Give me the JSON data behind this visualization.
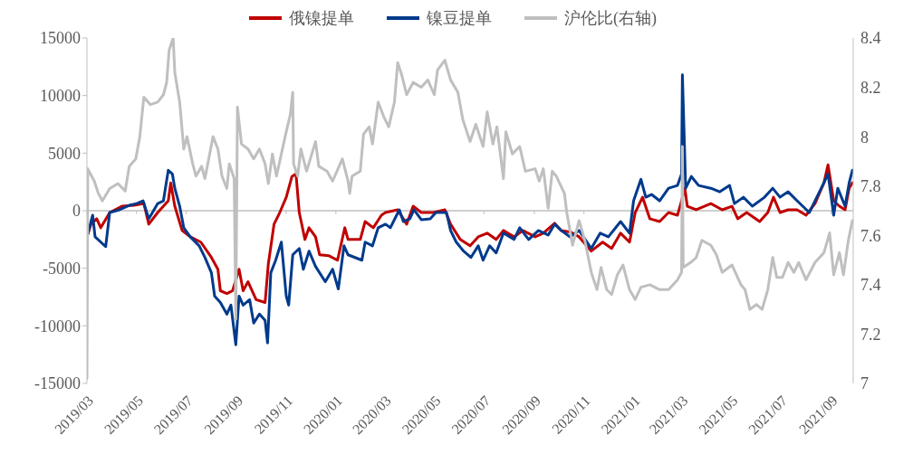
{
  "chart_data": {
    "type": "line",
    "legend": "top",
    "line_style": "solid",
    "marker": "none",
    "grid": false,
    "xlim": [
      "2019-03-01",
      "2021-09-28"
    ],
    "ref_lines": [
      {
        "axis": "y",
        "value": 0,
        "color": "#bfbfbf"
      }
    ],
    "xticks": [
      {
        "value": "2019-03-01",
        "label": "2019/03"
      },
      {
        "value": "2019-05-01",
        "label": "2019/05"
      },
      {
        "value": "2019-07-01",
        "label": "2019/07"
      },
      {
        "value": "2019-09-01",
        "label": "2019/09"
      },
      {
        "value": "2019-11-01",
        "label": "2019/11"
      },
      {
        "value": "2020-01-01",
        "label": "2020/01"
      },
      {
        "value": "2020-03-01",
        "label": "2020/03"
      },
      {
        "value": "2020-05-01",
        "label": "2020/05"
      },
      {
        "value": "2020-07-01",
        "label": "2020/07"
      },
      {
        "value": "2020-09-01",
        "label": "2020/09"
      },
      {
        "value": "2020-11-01",
        "label": "2020/11"
      },
      {
        "value": "2021-01-01",
        "label": "2021/01"
      },
      {
        "value": "2021-03-01",
        "label": "2021/03"
      },
      {
        "value": "2021-05-01",
        "label": "2021/05"
      },
      {
        "value": "2021-07-01",
        "label": "2021/07"
      },
      {
        "value": "2021-09-01",
        "label": "2021/09"
      }
    ],
    "ylim": [
      -15000,
      15000
    ],
    "yticks": [
      -15000,
      -10000,
      -5000,
      0,
      5000,
      10000,
      15000
    ],
    "y2lim": [
      7,
      8.4
    ],
    "y2ticks": [
      7,
      7.2,
      7.4,
      7.6,
      7.8,
      8,
      8.2,
      8.4
    ],
    "series": [
      {
        "name": "俄镍提单",
        "color": "#c00000",
        "x": [
          "2019-03-01",
          "2019-03-06",
          "2019-03-13",
          "2019-03-18",
          "2019-03-29",
          "2019-04-13",
          "2019-04-28",
          "2019-05-10",
          "2019-05-16",
          "2019-05-27",
          "2019-06-09",
          "2019-06-12",
          "2019-06-17",
          "2019-06-26",
          "2019-07-06",
          "2019-07-19",
          "2019-08-01",
          "2019-08-09",
          "2019-08-12",
          "2019-08-20",
          "2019-08-27",
          "2019-09-04",
          "2019-09-09",
          "2019-09-15",
          "2019-09-25",
          "2019-10-06",
          "2019-10-10",
          "2019-10-17",
          "2019-10-24",
          "2019-11-01",
          "2019-11-08",
          "2019-11-13",
          "2019-11-17",
          "2019-11-24",
          "2019-11-29",
          "2019-12-07",
          "2019-12-12",
          "2019-12-23",
          "2020-01-03",
          "2020-01-12",
          "2020-01-16",
          "2020-01-31",
          "2020-02-06",
          "2020-02-16",
          "2020-02-26",
          "2020-03-02",
          "2020-03-17",
          "2020-03-28",
          "2020-04-05",
          "2020-04-15",
          "2020-04-30",
          "2020-05-14",
          "2020-05-21",
          "2020-06-02",
          "2020-06-14",
          "2020-06-24",
          "2020-07-05",
          "2020-07-16",
          "2020-07-25",
          "2020-08-07",
          "2020-08-18",
          "2020-09-02",
          "2020-09-12",
          "2020-09-26",
          "2020-10-04",
          "2020-10-16",
          "2020-10-26",
          "2020-11-10",
          "2020-11-24",
          "2020-12-05",
          "2020-12-16",
          "2020-12-27",
          "2021-01-03",
          "2021-01-12",
          "2021-01-21",
          "2021-02-02",
          "2021-02-13",
          "2021-02-24",
          "2021-03-01",
          "2021-03-05",
          "2021-03-08",
          "2021-03-19",
          "2021-04-06",
          "2021-04-20",
          "2021-05-02",
          "2021-05-09",
          "2021-05-20",
          "2021-06-05",
          "2021-06-15",
          "2021-06-22",
          "2021-06-30",
          "2021-07-10",
          "2021-07-21",
          "2021-08-01",
          "2021-08-12",
          "2021-08-23",
          "2021-08-28",
          "2021-09-04",
          "2021-09-11",
          "2021-09-18",
          "2021-09-23",
          "2021-09-27"
        ],
        "values": [
          -2270,
          -1170,
          -700,
          -1480,
          -160,
          390,
          470,
          620,
          -1170,
          -160,
          860,
          2420,
          390,
          -1720,
          -2270,
          -2730,
          -4060,
          -5080,
          -6950,
          -7190,
          -6950,
          -5080,
          -6950,
          -6170,
          -7730,
          -7970,
          -4610,
          -1170,
          -160,
          1170,
          2970,
          3200,
          -160,
          -2500,
          -1480,
          -2270,
          -3830,
          -3900,
          -4300,
          -1480,
          -2500,
          -2500,
          -940,
          -1480,
          -390,
          -160,
          80,
          -1170,
          390,
          -160,
          -160,
          80,
          -1170,
          -2500,
          -3050,
          -2270,
          -1950,
          -2500,
          -1720,
          -2270,
          -1720,
          -2270,
          -1950,
          -1090,
          -1720,
          -1870,
          -2270,
          -3510,
          -2730,
          -3280,
          -1950,
          -2730,
          -160,
          1170,
          -700,
          -940,
          -160,
          -390,
          860,
          1950,
          390,
          80,
          620,
          80,
          390,
          -700,
          -160,
          -940,
          -160,
          1170,
          -160,
          80,
          80,
          -390,
          620,
          2420,
          3980,
          860,
          390,
          80,
          1950,
          2420
        ]
      },
      {
        "name": "镍豆提单",
        "color": "#003a8c",
        "x": [
          "2019-03-01",
          "2019-03-08",
          "2019-03-11",
          "2019-03-24",
          "2019-03-29",
          "2019-04-10",
          "2019-04-22",
          "2019-05-01",
          "2019-05-09",
          "2019-05-16",
          "2019-05-27",
          "2019-06-03",
          "2019-06-09",
          "2019-06-14",
          "2019-06-17",
          "2019-06-23",
          "2019-06-28",
          "2019-07-06",
          "2019-07-17",
          "2019-07-24",
          "2019-08-01",
          "2019-08-05",
          "2019-08-12",
          "2019-08-20",
          "2019-08-25",
          "2019-08-31",
          "2019-09-04",
          "2019-09-09",
          "2019-09-17",
          "2019-09-22",
          "2019-09-29",
          "2019-10-06",
          "2019-10-09",
          "2019-10-13",
          "2019-10-19",
          "2019-10-26",
          "2019-11-01",
          "2019-11-04",
          "2019-11-09",
          "2019-11-17",
          "2019-11-22",
          "2019-11-29",
          "2019-12-07",
          "2019-12-19",
          "2019-12-28",
          "2020-01-04",
          "2020-01-11",
          "2020-01-16",
          "2020-02-02",
          "2020-02-06",
          "2020-02-15",
          "2020-02-22",
          "2020-03-02",
          "2020-03-08",
          "2020-03-19",
          "2020-03-24",
          "2020-04-01",
          "2020-04-06",
          "2020-04-15",
          "2020-04-26",
          "2020-05-03",
          "2020-05-16",
          "2020-05-21",
          "2020-05-28",
          "2020-06-06",
          "2020-06-15",
          "2020-06-24",
          "2020-06-30",
          "2020-07-08",
          "2020-07-16",
          "2020-07-25",
          "2020-08-07",
          "2020-08-14",
          "2020-08-25",
          "2020-09-06",
          "2020-09-18",
          "2020-09-26",
          "2020-10-04",
          "2020-10-15",
          "2020-10-26",
          "2020-11-10",
          "2020-11-21",
          "2020-12-01",
          "2020-12-16",
          "2020-12-27",
          "2021-01-01",
          "2021-01-10",
          "2021-01-16",
          "2021-01-23",
          "2021-02-02",
          "2021-02-13",
          "2021-02-24",
          "2021-03-01",
          "2021-03-02",
          "2021-03-05",
          "2021-03-06",
          "2021-03-13",
          "2021-03-22",
          "2021-04-06",
          "2021-04-17",
          "2021-04-29",
          "2021-05-05",
          "2021-05-16",
          "2021-05-27",
          "2021-06-11",
          "2021-06-21",
          "2021-06-30",
          "2021-07-10",
          "2021-07-21",
          "2021-08-05",
          "2021-08-12",
          "2021-08-23",
          "2021-08-28",
          "2021-09-04",
          "2021-09-09",
          "2021-09-18",
          "2021-09-23",
          "2021-09-27"
        ],
        "values": [
          -2270,
          -390,
          -2270,
          -3120,
          -160,
          80,
          470,
          620,
          860,
          -700,
          620,
          860,
          3510,
          3200,
          1950,
          390,
          -1480,
          -2270,
          -3050,
          -4060,
          -5390,
          -7420,
          -7970,
          -8980,
          -8200,
          -11640,
          -7420,
          -8200,
          -7730,
          -9760,
          -8980,
          -9530,
          -11480,
          -5390,
          -4300,
          -2730,
          -7420,
          -8200,
          -3830,
          -3280,
          -5080,
          -3510,
          -4840,
          -6170,
          -5080,
          -6800,
          -3050,
          -3830,
          -4300,
          -2730,
          -3050,
          -1480,
          -1170,
          -1480,
          80,
          -940,
          -700,
          80,
          -780,
          -700,
          -160,
          -160,
          -1720,
          -2730,
          -3510,
          -4060,
          -3050,
          -4300,
          -3050,
          -3670,
          -1950,
          -2500,
          -1480,
          -2500,
          -1720,
          -2110,
          -1170,
          -1720,
          -2270,
          -1720,
          -3280,
          -1950,
          -2270,
          -940,
          -1950,
          860,
          2730,
          1170,
          1410,
          860,
          1950,
          2190,
          3200,
          11790,
          4530,
          1950,
          2970,
          2190,
          1950,
          1640,
          2190,
          620,
          1170,
          390,
          1170,
          1950,
          1170,
          1640,
          860,
          -160,
          860,
          2420,
          3200,
          -390,
          1950,
          390,
          2420,
          3510
        ]
      },
      {
        "name": "沪伦比(右轴)",
        "color": "#bfbfbf",
        "axis": "y2",
        "x": [
          "2019-03-01",
          "2019-03-02",
          "2019-03-10",
          "2019-03-15",
          "2019-03-20",
          "2019-03-29",
          "2019-04-08",
          "2019-04-17",
          "2019-04-22",
          "2019-04-30",
          "2019-05-05",
          "2019-05-09",
          "2019-05-10",
          "2019-05-18",
          "2019-05-27",
          "2019-06-03",
          "2019-06-07",
          "2019-06-10",
          "2019-06-15",
          "2019-06-17",
          "2019-06-23",
          "2019-06-28",
          "2019-07-02",
          "2019-07-09",
          "2019-07-13",
          "2019-07-20",
          "2019-07-24",
          "2019-08-03",
          "2019-08-09",
          "2019-08-14",
          "2019-08-20",
          "2019-08-23",
          "2019-08-29",
          "2019-08-31",
          "2019-09-02",
          "2019-09-07",
          "2019-09-15",
          "2019-09-22",
          "2019-09-29",
          "2019-10-06",
          "2019-10-10",
          "2019-10-15",
          "2019-10-20",
          "2019-11-01",
          "2019-11-06",
          "2019-11-09",
          "2019-11-10",
          "2019-11-15",
          "2019-11-19",
          "2019-11-26",
          "2019-12-07",
          "2019-12-11",
          "2019-12-21",
          "2019-12-28",
          "2020-01-09",
          "2020-01-16",
          "2020-01-18",
          "2020-01-21",
          "2020-01-31",
          "2020-02-04",
          "2020-02-11",
          "2020-02-15",
          "2020-02-22",
          "2020-02-29",
          "2020-03-06",
          "2020-03-13",
          "2020-03-17",
          "2020-03-22",
          "2020-03-28",
          "2020-04-05",
          "2020-04-15",
          "2020-04-23",
          "2020-05-01",
          "2020-05-05",
          "2020-05-14",
          "2020-05-21",
          "2020-05-30",
          "2020-06-05",
          "2020-06-14",
          "2020-06-21",
          "2020-06-30",
          "2020-07-05",
          "2020-07-12",
          "2020-07-17",
          "2020-07-25",
          "2020-07-28",
          "2020-08-05",
          "2020-08-14",
          "2020-08-21",
          "2020-09-02",
          "2020-09-07",
          "2020-09-12",
          "2020-09-18",
          "2020-09-23",
          "2020-09-28",
          "2020-10-08",
          "2020-10-11",
          "2020-10-18",
          "2020-10-26",
          "2020-11-02",
          "2020-11-10",
          "2020-11-17",
          "2020-11-22",
          "2020-11-29",
          "2020-12-05",
          "2020-12-12",
          "2020-12-19",
          "2020-12-27",
          "2021-01-03",
          "2021-01-10",
          "2021-01-21",
          "2021-02-02",
          "2021-02-13",
          "2021-02-24",
          "2021-03-01",
          "2021-03-02",
          "2021-03-03",
          "2021-03-12",
          "2021-03-19",
          "2021-03-26",
          "2021-04-06",
          "2021-04-13",
          "2021-04-20",
          "2021-05-02",
          "2021-05-13",
          "2021-05-18",
          "2021-05-24",
          "2021-06-01",
          "2021-06-08",
          "2021-06-15",
          "2021-06-21",
          "2021-06-26",
          "2021-07-03",
          "2021-07-10",
          "2021-07-17",
          "2021-07-23",
          "2021-08-01",
          "2021-08-12",
          "2021-08-23",
          "2021-08-30",
          "2021-09-04",
          "2021-09-11",
          "2021-09-16",
          "2021-09-22",
          "2021-09-27"
        ],
        "values": [
          7.02,
          7.87,
          7.82,
          7.77,
          7.74,
          7.79,
          7.81,
          7.78,
          7.88,
          7.91,
          8.0,
          8.13,
          8.16,
          8.13,
          8.14,
          8.17,
          8.22,
          8.35,
          8.4,
          8.26,
          8.14,
          7.95,
          8.0,
          7.89,
          7.84,
          7.88,
          7.83,
          8.0,
          7.95,
          7.84,
          7.79,
          7.89,
          7.83,
          7.26,
          8.12,
          7.97,
          7.95,
          7.91,
          7.95,
          7.89,
          7.81,
          7.93,
          7.84,
          8.02,
          8.09,
          8.18,
          7.89,
          7.84,
          7.95,
          7.86,
          7.98,
          7.88,
          7.86,
          7.82,
          7.91,
          7.82,
          7.77,
          7.84,
          7.86,
          8.01,
          8.04,
          7.97,
          8.14,
          8.08,
          8.04,
          8.14,
          8.3,
          8.25,
          8.17,
          8.22,
          8.2,
          8.23,
          8.17,
          8.27,
          8.31,
          8.23,
          8.18,
          8.07,
          7.98,
          8.05,
          7.96,
          8.1,
          7.97,
          8.04,
          7.83,
          8.02,
          7.93,
          7.96,
          7.86,
          7.87,
          7.82,
          7.87,
          7.71,
          7.86,
          7.84,
          7.77,
          7.69,
          7.56,
          7.66,
          7.58,
          7.45,
          7.38,
          7.47,
          7.38,
          7.36,
          7.44,
          7.48,
          7.38,
          7.34,
          7.39,
          7.4,
          7.38,
          7.38,
          7.42,
          7.45,
          7.96,
          7.47,
          7.49,
          7.51,
          7.58,
          7.56,
          7.52,
          7.45,
          7.48,
          7.4,
          7.38,
          7.3,
          7.32,
          7.3,
          7.38,
          7.51,
          7.43,
          7.43,
          7.49,
          7.45,
          7.49,
          7.42,
          7.49,
          7.53,
          7.61,
          7.44,
          7.53,
          7.44,
          7.58,
          7.66
        ]
      }
    ]
  }
}
